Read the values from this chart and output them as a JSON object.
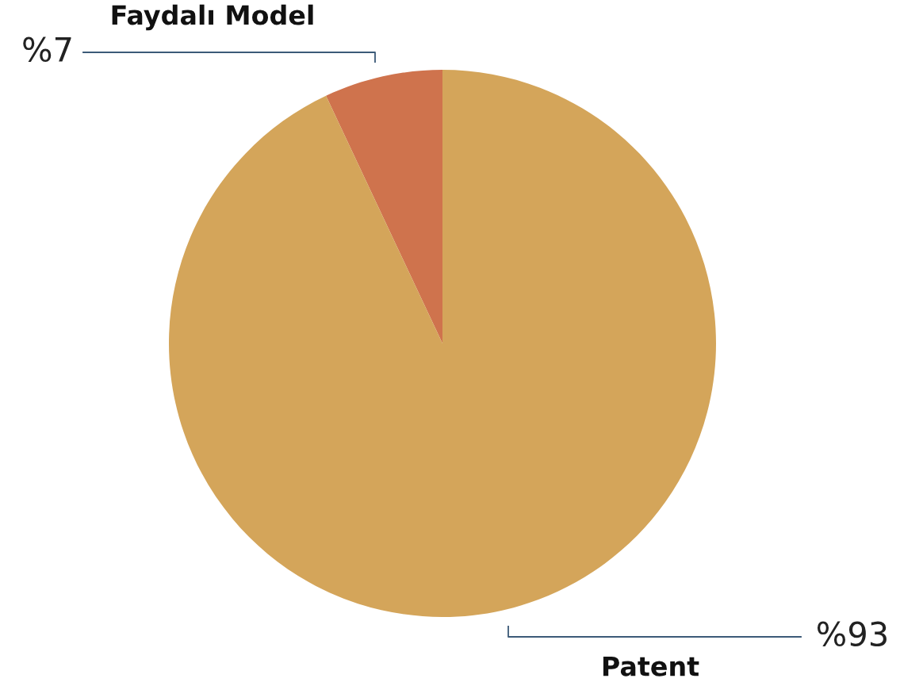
{
  "chart_data": {
    "type": "pie",
    "categories": [
      "Faydalı Model",
      "Patent"
    ],
    "values": [
      7,
      93
    ],
    "colors": [
      "#cf734d",
      "#d4a55a"
    ],
    "value_labels": [
      "%7",
      "%93"
    ]
  }
}
